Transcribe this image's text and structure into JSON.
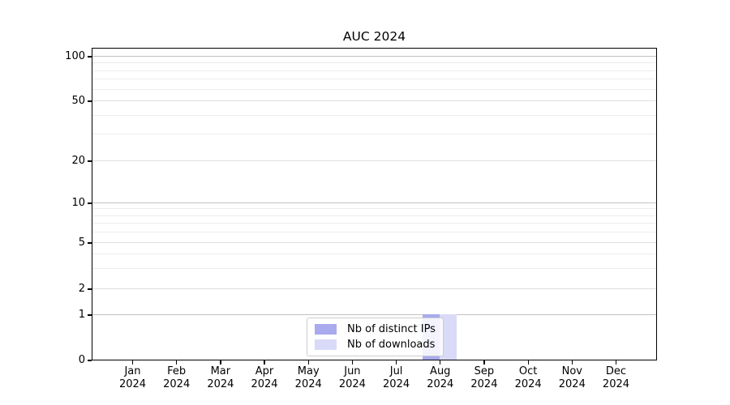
{
  "title": "AUC 2024",
  "chart_data": {
    "type": "bar",
    "title": "AUC 2024",
    "categories": [
      "Jan 2024",
      "Feb 2024",
      "Mar 2024",
      "Apr 2024",
      "May 2024",
      "Jun 2024",
      "Jul 2024",
      "Aug 2024",
      "Sep 2024",
      "Oct 2024",
      "Nov 2024",
      "Dec 2024"
    ],
    "series": [
      {
        "name": "Nb of distinct IPs",
        "color": "#a9abee",
        "values": [
          0,
          0,
          0,
          0,
          0,
          0,
          0,
          1,
          0,
          0,
          0,
          0
        ]
      },
      {
        "name": "Nb of downloads",
        "color": "#d9daf7",
        "values": [
          0,
          0,
          0,
          0,
          0,
          0,
          0,
          1,
          0,
          0,
          0,
          0
        ]
      }
    ],
    "xlabel": "",
    "ylabel": "",
    "yscale": "symlog",
    "y_major_ticks": [
      0,
      1,
      2,
      5,
      10,
      20,
      50,
      100
    ],
    "y_minor_gridlines": [
      3,
      4,
      6,
      7,
      8,
      9,
      30,
      40,
      60,
      70,
      80,
      90
    ],
    "ylim": [
      0,
      115
    ],
    "grid": true,
    "legend_position": "lower center"
  },
  "legend": {
    "items": [
      {
        "label": "Nb of distinct IPs",
        "color": "#a9abee"
      },
      {
        "label": "Nb of downloads",
        "color": "#d9daf7"
      }
    ]
  }
}
